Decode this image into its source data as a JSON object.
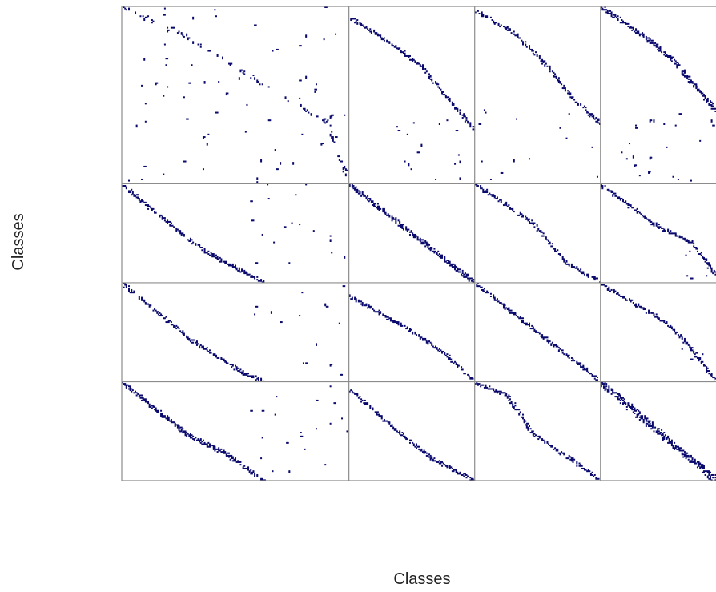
{
  "chart_data": {
    "type": "heatmap",
    "title": "",
    "xlabel": "Classes",
    "ylabel": "Classes",
    "grid": true,
    "legend": "none",
    "blocks": {
      "col_sizes": [
        177,
        98,
        98,
        90
      ],
      "row_sizes": [
        138,
        77,
        77,
        77
      ]
    },
    "colors": {
      "cell": "#0b0b6e",
      "grid": "#8c8c8c",
      "axis_text": "#222222",
      "background": "#ffffff"
    },
    "noise_seed": 7,
    "diagonal_bands": [
      {
        "row_block": 0,
        "col_block": 0,
        "points": [
          [
            0,
            0
          ],
          [
            45,
            20
          ],
          [
            110,
            60
          ],
          [
            160,
            90
          ],
          [
            176,
            137
          ]
        ],
        "width": 2,
        "density": 0.35
      },
      {
        "row_block": 0,
        "col_block": 1,
        "points": [
          [
            0,
            8
          ],
          [
            35,
            30
          ],
          [
            55,
            45
          ],
          [
            80,
            75
          ],
          [
            97,
            95
          ]
        ],
        "width": 2,
        "density": 0.9
      },
      {
        "row_block": 0,
        "col_block": 2,
        "points": [
          [
            0,
            2
          ],
          [
            30,
            20
          ],
          [
            55,
            45
          ],
          [
            75,
            70
          ],
          [
            97,
            90
          ]
        ],
        "width": 2,
        "density": 0.9
      },
      {
        "row_block": 0,
        "col_block": 3,
        "points": [
          [
            0,
            0
          ],
          [
            30,
            20
          ],
          [
            55,
            40
          ],
          [
            89,
            80
          ]
        ],
        "width": 3,
        "density": 0.9
      },
      {
        "row_block": 1,
        "col_block": 0,
        "points": [
          [
            0,
            0
          ],
          [
            30,
            25
          ],
          [
            55,
            45
          ],
          [
            70,
            55
          ],
          [
            110,
            76
          ]
        ],
        "width": 2,
        "density": 0.95
      },
      {
        "row_block": 1,
        "col_block": 1,
        "points": [
          [
            0,
            0
          ],
          [
            97,
            76
          ]
        ],
        "width": 3,
        "density": 1.0
      },
      {
        "row_block": 1,
        "col_block": 2,
        "points": [
          [
            0,
            0
          ],
          [
            45,
            30
          ],
          [
            70,
            60
          ],
          [
            97,
            76
          ]
        ],
        "width": 2,
        "density": 0.85
      },
      {
        "row_block": 1,
        "col_block": 3,
        "points": [
          [
            0,
            0
          ],
          [
            40,
            30
          ],
          [
            70,
            45
          ],
          [
            89,
            70
          ]
        ],
        "width": 2,
        "density": 0.9
      },
      {
        "row_block": 2,
        "col_block": 0,
        "points": [
          [
            0,
            0
          ],
          [
            55,
            45
          ],
          [
            95,
            70
          ],
          [
            110,
            76
          ]
        ],
        "width": 2,
        "density": 0.95
      },
      {
        "row_block": 2,
        "col_block": 1,
        "points": [
          [
            0,
            10
          ],
          [
            45,
            35
          ],
          [
            75,
            55
          ],
          [
            97,
            76
          ]
        ],
        "width": 2,
        "density": 0.9
      },
      {
        "row_block": 2,
        "col_block": 2,
        "points": [
          [
            0,
            0
          ],
          [
            97,
            76
          ]
        ],
        "width": 2,
        "density": 1.0
      },
      {
        "row_block": 2,
        "col_block": 3,
        "points": [
          [
            0,
            0
          ],
          [
            50,
            30
          ],
          [
            70,
            50
          ],
          [
            89,
            76
          ]
        ],
        "width": 2,
        "density": 0.85
      },
      {
        "row_block": 3,
        "col_block": 0,
        "points": [
          [
            0,
            0
          ],
          [
            50,
            40
          ],
          [
            80,
            55
          ],
          [
            110,
            76
          ]
        ],
        "width": 3,
        "density": 0.95
      },
      {
        "row_block": 3,
        "col_block": 1,
        "points": [
          [
            0,
            5
          ],
          [
            40,
            40
          ],
          [
            65,
            60
          ],
          [
            97,
            76
          ]
        ],
        "width": 2,
        "density": 0.95
      },
      {
        "row_block": 3,
        "col_block": 2,
        "points": [
          [
            0,
            0
          ],
          [
            25,
            10
          ],
          [
            45,
            40
          ],
          [
            75,
            60
          ],
          [
            97,
            76
          ]
        ],
        "width": 2,
        "density": 0.9
      },
      {
        "row_block": 3,
        "col_block": 3,
        "points": [
          [
            0,
            0
          ],
          [
            89,
            76
          ]
        ],
        "width": 4,
        "density": 1.0
      }
    ],
    "scatter_clusters": [
      {
        "row_block": 0,
        "col_block": 0,
        "x_range": [
          0,
          176
        ],
        "y_range": [
          0,
          137
        ],
        "count": 70
      },
      {
        "row_block": 0,
        "col_block": 1,
        "x_range": [
          35,
          90
        ],
        "y_range": [
          85,
          137
        ],
        "count": 18
      },
      {
        "row_block": 0,
        "col_block": 2,
        "x_range": [
          0,
          97
        ],
        "y_range": [
          80,
          137
        ],
        "count": 16
      },
      {
        "row_block": 0,
        "col_block": 3,
        "x_range": [
          0,
          89
        ],
        "y_range": [
          80,
          137
        ],
        "count": 22
      },
      {
        "row_block": 1,
        "col_block": 0,
        "x_range": [
          100,
          176
        ],
        "y_range": [
          0,
          76
        ],
        "count": 18
      },
      {
        "row_block": 1,
        "col_block": 3,
        "x_range": [
          60,
          89
        ],
        "y_range": [
          50,
          76
        ],
        "count": 6
      },
      {
        "row_block": 2,
        "col_block": 0,
        "x_range": [
          100,
          176
        ],
        "y_range": [
          0,
          76
        ],
        "count": 16
      },
      {
        "row_block": 2,
        "col_block": 3,
        "x_range": [
          60,
          89
        ],
        "y_range": [
          45,
          76
        ],
        "count": 6
      },
      {
        "row_block": 3,
        "col_block": 0,
        "x_range": [
          100,
          176
        ],
        "y_range": [
          0,
          76
        ],
        "count": 20
      }
    ]
  }
}
